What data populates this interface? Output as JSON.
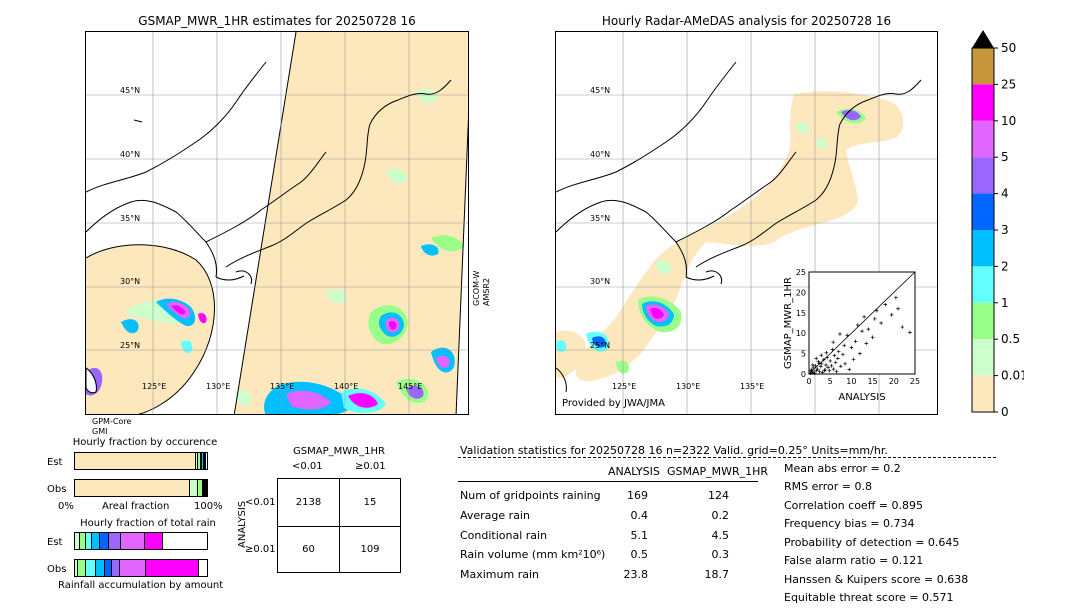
{
  "map_left": {
    "title": "GSMAP_MWR_1HR estimates for 20250728 16",
    "lat_labels": [
      "45°N",
      "40°N",
      "35°N",
      "30°N",
      "25°N"
    ],
    "lon_labels": [
      "125°E",
      "130°E",
      "135°E",
      "140°E",
      "145°E"
    ],
    "sensor_left": "GPM-Core\nGMI",
    "sensor_right": "GCOM-W\nAMSR2"
  },
  "map_right": {
    "title": "Hourly Radar-AMeDAS analysis for 20250728 16",
    "lat_labels": [
      "45°N",
      "40°N",
      "35°N",
      "30°N",
      "25°N"
    ],
    "lon_labels": [
      "125°E",
      "130°E",
      "135°E"
    ],
    "credit": "Provided by JWA/JMA"
  },
  "colorbar": {
    "labels": [
      "50",
      "25",
      "10",
      "5",
      "4",
      "3",
      "2",
      "1",
      "0.5",
      "0.01",
      "0"
    ],
    "colors": [
      "#c8963c",
      "#ff00ff",
      "#e066ff",
      "#9966ff",
      "#0066ff",
      "#00c0ff",
      "#66ffff",
      "#99ff88",
      "#ccffcc",
      "#fde8bd"
    ],
    "extend_color": "#000000"
  },
  "chart_data": [
    {
      "type": "scatter",
      "xlabel": "ANALYSIS",
      "ylabel": "GSMAP_MWR_1HR",
      "xlim": [
        0,
        25
      ],
      "ylim": [
        0,
        25
      ],
      "ticks": [
        "0",
        "5",
        "10",
        "15",
        "20",
        "25"
      ],
      "points": [
        [
          0.3,
          0.2
        ],
        [
          0.5,
          0.8
        ],
        [
          0.8,
          0.3
        ],
        [
          1.0,
          1.5
        ],
        [
          1.2,
          0.5
        ],
        [
          1.5,
          2.0
        ],
        [
          1.8,
          0.9
        ],
        [
          2.0,
          1.2
        ],
        [
          2.2,
          3.0
        ],
        [
          2.5,
          0.6
        ],
        [
          2.8,
          1.8
        ],
        [
          3.0,
          2.5
        ],
        [
          3.2,
          0.4
        ],
        [
          3.5,
          3.5
        ],
        [
          3.8,
          1.0
        ],
        [
          4.0,
          2.2
        ],
        [
          4.3,
          4.0
        ],
        [
          4.5,
          1.6
        ],
        [
          4.8,
          0.8
        ],
        [
          5.0,
          3.2
        ],
        [
          5.3,
          2.0
        ],
        [
          5.5,
          6.0
        ],
        [
          5.8,
          1.2
        ],
        [
          6.0,
          4.5
        ],
        [
          6.3,
          2.8
        ],
        [
          6.5,
          0.6
        ],
        [
          6.8,
          3.8
        ],
        [
          7.0,
          5.5
        ],
        [
          7.5,
          1.9
        ],
        [
          8.0,
          4.8
        ],
        [
          8.3,
          7.0
        ],
        [
          8.5,
          2.5
        ],
        [
          9.0,
          9.5
        ],
        [
          9.5,
          1.1
        ],
        [
          10.0,
          6.5
        ],
        [
          10.5,
          3.6
        ],
        [
          11.0,
          8.0
        ],
        [
          11.5,
          12.0
        ],
        [
          12.0,
          5.0
        ],
        [
          12.5,
          10.5
        ],
        [
          13.0,
          14.0
        ],
        [
          13.5,
          7.5
        ],
        [
          14.0,
          11.0
        ],
        [
          15.0,
          9.0
        ],
        [
          15.5,
          13.5
        ],
        [
          16.0,
          15.5
        ],
        [
          17.0,
          12.5
        ],
        [
          18.0,
          17.0
        ],
        [
          19.5,
          14.5
        ],
        [
          20.5,
          18.7
        ],
        [
          21.0,
          16.0
        ],
        [
          22.0,
          11.5
        ],
        [
          23.8,
          10.2
        ],
        [
          0.6,
          1.0
        ],
        [
          1.3,
          0.2
        ],
        [
          2.4,
          2.6
        ],
        [
          3.6,
          0.9
        ],
        [
          0.9,
          2.2
        ],
        [
          1.7,
          3.8
        ],
        [
          2.9,
          4.6
        ],
        [
          4.1,
          5.2
        ],
        [
          5.7,
          7.8
        ],
        [
          7.3,
          9.8
        ]
      ]
    },
    {
      "type": "bar",
      "title": "Hourly fraction by occurence",
      "categories": [
        "Est",
        "Obs"
      ],
      "xlabel": "Areal fraction",
      "x_left": "0%",
      "x_right": "100%",
      "series": [
        {
          "values": [
            0.92,
            0.88
          ]
        },
        {
          "values": [
            0.015,
            0.06
          ]
        },
        {
          "values": [
            0.02,
            0.04
          ]
        },
        {
          "values": [
            0.01,
            0.006
          ]
        },
        {
          "values": [
            0.01,
            0.005
          ]
        },
        {
          "values": [
            0.006,
            0.004
          ]
        },
        {
          "values": [
            0.006,
            0.003
          ]
        }
      ]
    },
    {
      "type": "bar",
      "title": "Hourly fraction of total rain",
      "categories": [
        "Est",
        "Obs"
      ],
      "xlabel": "Rainfall accumulation by amount",
      "series": [
        {
          "values": [
            0.04,
            0.02
          ]
        },
        {
          "values": [
            0.04,
            0.06
          ]
        },
        {
          "values": [
            0.05,
            0.08
          ]
        },
        {
          "values": [
            0.06,
            0.07
          ]
        },
        {
          "values": [
            0.07,
            0.05
          ]
        },
        {
          "values": [
            0.09,
            0.06
          ]
        },
        {
          "values": [
            0.18,
            0.2
          ]
        },
        {
          "values": [
            0.14,
            0.4
          ]
        }
      ]
    }
  ],
  "contingency": {
    "title": "GSMAP_MWR_1HR",
    "col_headers": [
      "<0.01",
      "≥0.01"
    ],
    "row_label": "ANALYSIS",
    "row_headers": [
      "<0.01",
      "≥0.01"
    ],
    "cells": [
      [
        "2138",
        "15"
      ],
      [
        "60",
        "109"
      ]
    ]
  },
  "validation": {
    "title": "Validation statistics for 20250728 16  n=2322 Valid. grid=0.25° Units=mm/hr.",
    "col_headers": [
      "ANALYSIS",
      "GSMAP_MWR_1HR"
    ],
    "rows": [
      {
        "label": "Num of gridpoints raining",
        "a": "169",
        "b": "124"
      },
      {
        "label": "Average rain",
        "a": "0.4",
        "b": "0.2"
      },
      {
        "label": "Conditional rain",
        "a": "5.1",
        "b": "4.5"
      },
      {
        "label": "Rain volume (mm km²10⁶)",
        "a": "0.5",
        "b": "0.3"
      },
      {
        "label": "Maximum rain",
        "a": "23.8",
        "b": "18.7"
      }
    ],
    "scores": [
      "Mean abs error =    0.2",
      "RMS error =    0.8",
      "Correlation coeff =  0.895",
      "Frequency bias =  0.734",
      "Probability of detection =  0.645",
      "False alarm ratio =  0.121",
      "Hanssen & Kuipers score =  0.638",
      "Equitable threat score =  0.571"
    ]
  }
}
